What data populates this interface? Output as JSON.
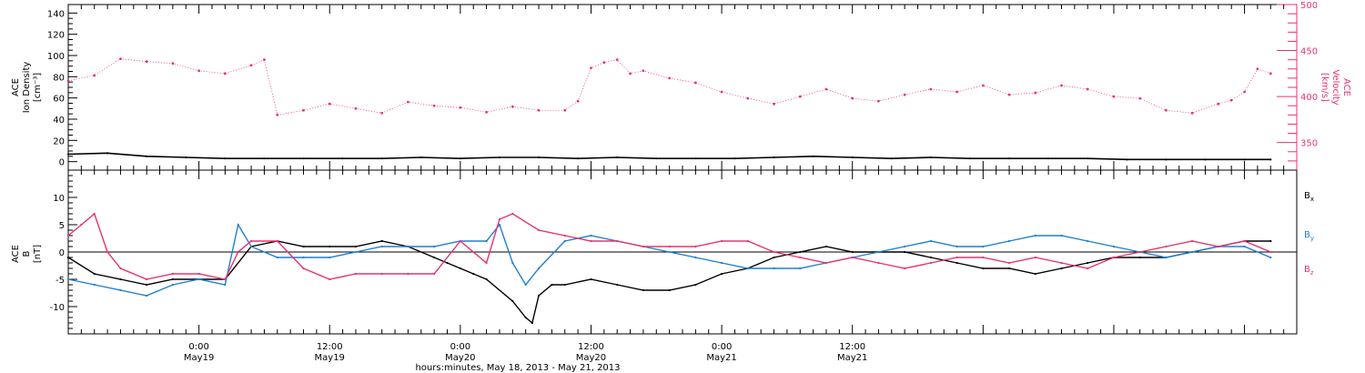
{
  "chart_data": [
    {
      "type": "scatter",
      "panel": "density-velocity",
      "ylabel_left": [
        "ACE",
        "Ion Density",
        "[cm⁻³]"
      ],
      "ylabel_right": [
        "ACE",
        "Velocity",
        "[km/s]"
      ],
      "ylim_left": [
        -8,
        148
      ],
      "ylim_right": [
        320,
        500
      ],
      "yticks_left": [
        "0",
        "20",
        "40",
        "60",
        "80",
        "100",
        "120",
        "140"
      ],
      "yticks_right": [
        "350",
        "400",
        "450",
        "500"
      ],
      "series": [
        {
          "axis": "left",
          "color": "#000000",
          "points": [
            [
              0,
              7
            ],
            [
              3,
              8
            ],
            [
              6,
              5
            ],
            [
              9,
              4
            ],
            [
              12,
              3
            ],
            [
              15,
              3
            ],
            [
              18,
              3
            ],
            [
              21,
              3
            ],
            [
              24,
              3
            ],
            [
              27,
              4
            ],
            [
              30,
              3
            ],
            [
              33,
              4
            ],
            [
              36,
              4
            ],
            [
              39,
              3
            ],
            [
              42,
              4
            ],
            [
              45,
              3
            ],
            [
              48,
              3
            ],
            [
              51,
              3
            ],
            [
              54,
              4
            ],
            [
              57,
              5
            ],
            [
              60,
              4
            ],
            [
              63,
              3
            ],
            [
              66,
              4
            ],
            [
              69,
              3
            ],
            [
              72,
              3
            ],
            [
              75,
              3
            ],
            [
              78,
              3
            ],
            [
              81,
              2
            ],
            [
              84,
              2
            ],
            [
              87,
              2
            ],
            [
              90,
              2
            ],
            [
              92,
              2
            ]
          ]
        },
        {
          "axis": "right",
          "color": "#e8336e",
          "points": [
            [
              0,
              417
            ],
            [
              2,
              423
            ],
            [
              4,
              441
            ],
            [
              6,
              438
            ],
            [
              8,
              436
            ],
            [
              10,
              428
            ],
            [
              12,
              425
            ],
            [
              14,
              434
            ],
            [
              15,
              440
            ],
            [
              16,
              380
            ],
            [
              18,
              385
            ],
            [
              20,
              392
            ],
            [
              22,
              387
            ],
            [
              24,
              382
            ],
            [
              26,
              394
            ],
            [
              28,
              390
            ],
            [
              30,
              388
            ],
            [
              32,
              383
            ],
            [
              34,
              389
            ],
            [
              36,
              385
            ],
            [
              38,
              385
            ],
            [
              39,
              395
            ],
            [
              40,
              431
            ],
            [
              41,
              437
            ],
            [
              42,
              440
            ],
            [
              43,
              425
            ],
            [
              44,
              428
            ],
            [
              46,
              420
            ],
            [
              48,
              415
            ],
            [
              50,
              405
            ],
            [
              52,
              398
            ],
            [
              54,
              392
            ],
            [
              56,
              400
            ],
            [
              58,
              408
            ],
            [
              60,
              398
            ],
            [
              62,
              395
            ],
            [
              64,
              402
            ],
            [
              66,
              408
            ],
            [
              68,
              405
            ],
            [
              70,
              412
            ],
            [
              72,
              402
            ],
            [
              74,
              404
            ],
            [
              76,
              412
            ],
            [
              78,
              408
            ],
            [
              80,
              400
            ],
            [
              82,
              398
            ],
            [
              84,
              385
            ],
            [
              86,
              382
            ],
            [
              88,
              392
            ],
            [
              89,
              396
            ],
            [
              90,
              405
            ],
            [
              91,
              430
            ],
            [
              92,
              425
            ]
          ]
        }
      ]
    },
    {
      "type": "line",
      "panel": "magnetic-field",
      "ylabel": [
        "ACE",
        "B",
        "[nT]"
      ],
      "ylim": [
        -15,
        15
      ],
      "yticks": [
        "-10",
        "-5",
        "0",
        "5",
        "10"
      ],
      "legend": [
        "B",
        "B",
        "B"
      ],
      "legend_subscripts": [
        "x",
        "y",
        "z"
      ],
      "legend_placement": "right",
      "x_range_hours": [
        0,
        94
      ],
      "series": [
        {
          "name": "Bx",
          "color": "#000000",
          "points": [
            [
              0,
              -1
            ],
            [
              2,
              -4
            ],
            [
              4,
              -5
            ],
            [
              6,
              -6
            ],
            [
              8,
              -5
            ],
            [
              10,
              -5
            ],
            [
              12,
              -5
            ],
            [
              14,
              1
            ],
            [
              16,
              2
            ],
            [
              18,
              1
            ],
            [
              20,
              1
            ],
            [
              22,
              1
            ],
            [
              24,
              2
            ],
            [
              26,
              1
            ],
            [
              28,
              -1
            ],
            [
              29,
              -2
            ],
            [
              30,
              -3
            ],
            [
              31,
              -4
            ],
            [
              32,
              -5
            ],
            [
              34,
              -9
            ],
            [
              35,
              -12
            ],
            [
              35.5,
              -13
            ],
            [
              36,
              -8
            ],
            [
              37,
              -6
            ],
            [
              38,
              -6
            ],
            [
              40,
              -5
            ],
            [
              42,
              -6
            ],
            [
              44,
              -7
            ],
            [
              46,
              -7
            ],
            [
              48,
              -6
            ],
            [
              50,
              -4
            ],
            [
              52,
              -3
            ],
            [
              54,
              -1
            ],
            [
              56,
              0
            ],
            [
              58,
              1
            ],
            [
              60,
              0
            ],
            [
              62,
              0
            ],
            [
              64,
              0
            ],
            [
              66,
              -1
            ],
            [
              68,
              -2
            ],
            [
              70,
              -3
            ],
            [
              72,
              -3
            ],
            [
              74,
              -4
            ],
            [
              76,
              -3
            ],
            [
              78,
              -2
            ],
            [
              80,
              -1
            ],
            [
              82,
              -1
            ],
            [
              84,
              -1
            ],
            [
              86,
              0
            ],
            [
              88,
              1
            ],
            [
              90,
              2
            ],
            [
              92,
              2
            ]
          ]
        },
        {
          "name": "By",
          "color": "#1f7fd0",
          "points": [
            [
              0,
              -5
            ],
            [
              2,
              -6
            ],
            [
              4,
              -7
            ],
            [
              6,
              -8
            ],
            [
              8,
              -6
            ],
            [
              10,
              -5
            ],
            [
              12,
              -6
            ],
            [
              13,
              5
            ],
            [
              14,
              1
            ],
            [
              16,
              -1
            ],
            [
              18,
              -1
            ],
            [
              20,
              -1
            ],
            [
              22,
              0
            ],
            [
              24,
              1
            ],
            [
              26,
              1
            ],
            [
              28,
              1
            ],
            [
              30,
              2
            ],
            [
              32,
              2
            ],
            [
              33,
              5
            ],
            [
              34,
              -2
            ],
            [
              35,
              -6
            ],
            [
              36,
              -3
            ],
            [
              38,
              2
            ],
            [
              40,
              3
            ],
            [
              42,
              2
            ],
            [
              44,
              1
            ],
            [
              46,
              0
            ],
            [
              48,
              -1
            ],
            [
              50,
              -2
            ],
            [
              52,
              -3
            ],
            [
              54,
              -3
            ],
            [
              56,
              -3
            ],
            [
              58,
              -2
            ],
            [
              60,
              -1
            ],
            [
              62,
              0
            ],
            [
              64,
              1
            ],
            [
              66,
              2
            ],
            [
              68,
              1
            ],
            [
              70,
              1
            ],
            [
              72,
              2
            ],
            [
              74,
              3
            ],
            [
              76,
              3
            ],
            [
              78,
              2
            ],
            [
              80,
              1
            ],
            [
              82,
              0
            ],
            [
              84,
              -1
            ],
            [
              86,
              0
            ],
            [
              88,
              1
            ],
            [
              90,
              1
            ],
            [
              92,
              -1
            ]
          ]
        },
        {
          "name": "Bz",
          "color": "#e8336e",
          "points": [
            [
              0,
              3
            ],
            [
              1,
              5
            ],
            [
              2,
              7
            ],
            [
              3,
              0
            ],
            [
              4,
              -3
            ],
            [
              6,
              -5
            ],
            [
              8,
              -4
            ],
            [
              10,
              -4
            ],
            [
              12,
              -5
            ],
            [
              13,
              0
            ],
            [
              14,
              2
            ],
            [
              16,
              2
            ],
            [
              18,
              -3
            ],
            [
              20,
              -5
            ],
            [
              22,
              -4
            ],
            [
              24,
              -4
            ],
            [
              26,
              -4
            ],
            [
              28,
              -4
            ],
            [
              30,
              2
            ],
            [
              32,
              -2
            ],
            [
              33,
              6
            ],
            [
              34,
              7
            ],
            [
              36,
              4
            ],
            [
              38,
              3
            ],
            [
              40,
              2
            ],
            [
              42,
              2
            ],
            [
              44,
              1
            ],
            [
              46,
              1
            ],
            [
              48,
              1
            ],
            [
              50,
              2
            ],
            [
              52,
              2
            ],
            [
              54,
              0
            ],
            [
              56,
              -1
            ],
            [
              58,
              -2
            ],
            [
              60,
              -1
            ],
            [
              62,
              -2
            ],
            [
              64,
              -3
            ],
            [
              66,
              -2
            ],
            [
              68,
              -1
            ],
            [
              70,
              -1
            ],
            [
              72,
              -2
            ],
            [
              74,
              -1
            ],
            [
              76,
              -2
            ],
            [
              78,
              -3
            ],
            [
              80,
              -1
            ],
            [
              82,
              0
            ],
            [
              84,
              1
            ],
            [
              86,
              2
            ],
            [
              88,
              1
            ],
            [
              90,
              2
            ],
            [
              92,
              0
            ]
          ]
        }
      ]
    }
  ],
  "x_axis": {
    "ticks": [
      {
        "hour": 10,
        "time": "0:00",
        "date": "May19"
      },
      {
        "hour": 20,
        "time": "12:00",
        "date": "May19"
      },
      {
        "hour": 30,
        "time": "0:00",
        "date": "May20"
      },
      {
        "hour": 40,
        "time": "12:00",
        "date": "May20"
      },
      {
        "hour": 50,
        "time": "0:00",
        "date": "May21"
      },
      {
        "hour": 60,
        "time": "12:00",
        "date": "May21"
      }
    ],
    "label": "hours:minutes, May 18, 2013 - May 21, 2013"
  }
}
